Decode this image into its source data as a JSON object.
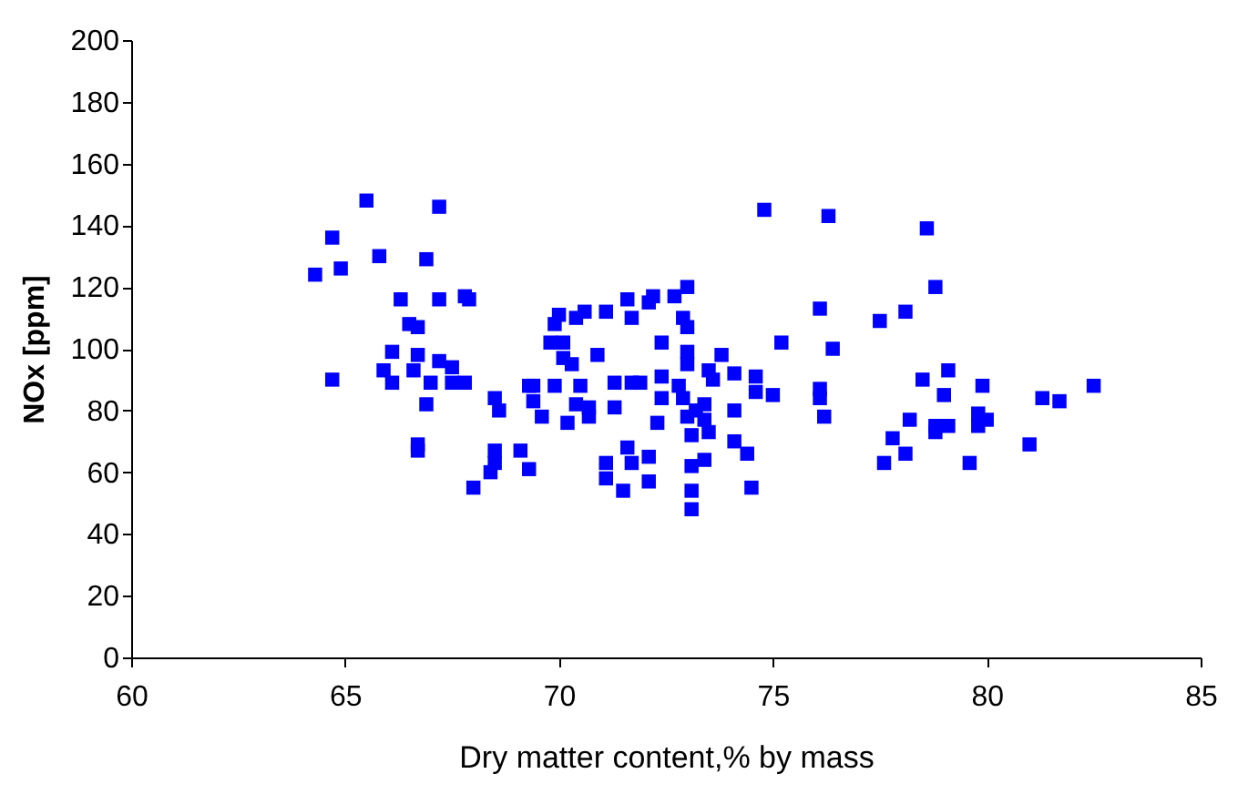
{
  "chart_data": {
    "type": "scatter",
    "xlabel": "Dry matter content,% by mass",
    "ylabel": "NOx [ppm]",
    "xlim": [
      60,
      85
    ],
    "xticks": [
      60,
      65,
      70,
      75,
      80,
      85
    ],
    "ylim": [
      0,
      200
    ],
    "yticks": [
      0,
      20,
      40,
      60,
      80,
      100,
      120,
      140,
      160,
      180,
      200
    ],
    "grid": false,
    "marker": "square",
    "x": [
      65.5,
      67.2,
      64.7,
      65.8,
      66.9,
      64.9,
      64.3,
      66.3,
      67.2,
      67.8,
      67.9,
      66.5,
      66.7,
      66.1,
      66.7,
      65.9,
      66.1,
      66.6,
      67.2,
      67.5,
      67.0,
      67.5,
      67.8,
      64.7,
      66.9,
      68.5,
      68.6,
      69.4,
      69.4,
      69.3,
      66.7,
      66.7,
      68.5,
      68.5,
      68.4,
      68.0,
      69.1,
      69.3,
      74.8,
      76.3,
      69.9,
      70.0,
      70.4,
      70.6,
      71.1,
      71.6,
      71.7,
      72.1,
      72.2,
      72.7,
      73.0,
      72.9,
      73.0,
      76.1,
      69.8,
      70.1,
      70.9,
      72.4,
      75.2,
      76.4,
      70.1,
      70.3,
      73.0,
      73.0,
      73.8,
      73.5,
      73.6,
      74.1,
      74.6,
      74.6,
      75.0,
      76.1,
      76.1,
      76.2,
      69.9,
      70.5,
      70.4,
      70.7,
      70.7,
      69.6,
      70.2,
      71.3,
      71.7,
      71.9,
      72.4,
      72.4,
      72.8,
      72.9,
      71.3,
      72.3,
      73.0,
      73.4,
      73.4,
      73.5,
      73.2,
      73.1,
      74.1,
      74.1,
      74.4,
      74.5,
      71.6,
      71.7,
      72.1,
      72.1,
      71.1,
      71.1,
      71.5,
      73.1,
      73.4,
      73.1,
      73.1,
      78.6,
      78.8,
      77.5,
      78.1,
      79.1,
      78.5,
      79.0,
      79.9,
      82.5,
      81.3,
      81.7,
      78.2,
      78.8,
      78.8,
      79.1,
      79.8,
      79.8,
      80.0,
      77.8,
      78.1,
      77.6,
      79.6,
      81.0
    ],
    "values": [
      148,
      146,
      136,
      130,
      129,
      126,
      124,
      116,
      116,
      117,
      116,
      108,
      107,
      99,
      98,
      93,
      89,
      93,
      96,
      94,
      89,
      89,
      89,
      90,
      82,
      84,
      80,
      88,
      83,
      88,
      69,
      67,
      67,
      63,
      60,
      55,
      67,
      61,
      145,
      143,
      108,
      111,
      110,
      112,
      112,
      116,
      110,
      115,
      117,
      117,
      120,
      110,
      107,
      113,
      102,
      102,
      98,
      102,
      102,
      100,
      97,
      95,
      99,
      95,
      98,
      93,
      90,
      92,
      91,
      86,
      85,
      87,
      84,
      78,
      88,
      88,
      82,
      81,
      78,
      78,
      76,
      89,
      89,
      89,
      91,
      84,
      88,
      84,
      81,
      76,
      78,
      82,
      77,
      73,
      80,
      72,
      80,
      70,
      66,
      55,
      68,
      63,
      65,
      57,
      63,
      58,
      54,
      62,
      64,
      54,
      48,
      139,
      120,
      109,
      112,
      93,
      90,
      85,
      88,
      88,
      84,
      83,
      77,
      75,
      73,
      75,
      79,
      75,
      77,
      71,
      66,
      63,
      63,
      69
    ],
    "color": "#0000ff"
  }
}
